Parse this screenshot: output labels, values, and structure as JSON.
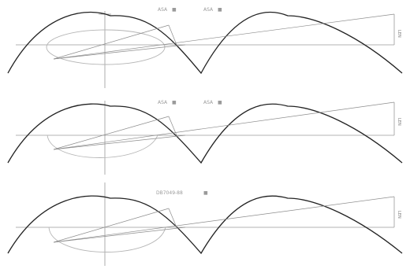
{
  "panels": [
    {
      "caption_a": "ASA",
      "mark_a": "■",
      "caption_b": "ASA",
      "mark_b": "■",
      "side_label": "LEN"
    },
    {
      "caption_a": "ASA",
      "mark_a": "■",
      "caption_b": "ASA",
      "mark_b": "■",
      "side_label": "LEN"
    },
    {
      "caption_a": "DB7049-88",
      "mark_a": "■",
      "caption_b": "",
      "mark_b": "",
      "side_label": "LEN"
    }
  ],
  "colors": {
    "curve": "#222222",
    "guide": "#8c8c8c",
    "ellipse": "#b5b5b5"
  }
}
